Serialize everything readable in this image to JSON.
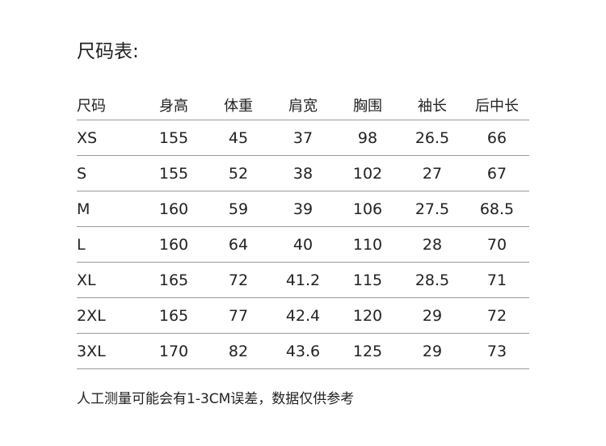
{
  "title": "尺码表:",
  "table": {
    "headers": [
      "尺码",
      "身高",
      "体重",
      "肩宽",
      "胸围",
      "袖长",
      "后中长"
    ],
    "rows": [
      [
        "XS",
        "155",
        "45",
        "37",
        "98",
        "26.5",
        "66"
      ],
      [
        "S",
        "155",
        "52",
        "38",
        "102",
        "27",
        "67"
      ],
      [
        "M",
        "160",
        "59",
        "39",
        "106",
        "27.5",
        "68.5"
      ],
      [
        "L",
        "160",
        "64",
        "40",
        "110",
        "28",
        "70"
      ],
      [
        "XL",
        "165",
        "72",
        "41.2",
        "115",
        "28.5",
        "71"
      ],
      [
        "2XL",
        "165",
        "77",
        "42.4",
        "120",
        "29",
        "72"
      ],
      [
        "3XL",
        "170",
        "82",
        "43.6",
        "125",
        "29",
        "73"
      ]
    ]
  },
  "note": "人工测量可能会有1-3CM误差，数据仅供参考"
}
